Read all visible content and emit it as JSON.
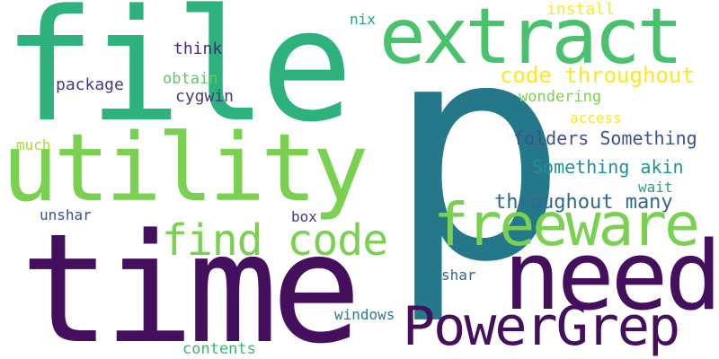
{
  "words": [
    {
      "text": "p",
      "color": "#24788a"
    },
    {
      "text": "file",
      "color": "#2db27d"
    },
    {
      "text": "time",
      "color": "#440f5c"
    },
    {
      "text": "utility",
      "color": "#7ad151"
    },
    {
      "text": "extract",
      "color": "#4ac16d"
    },
    {
      "text": "need",
      "color": "#440f5c"
    },
    {
      "text": "freeware",
      "color": "#7ad151"
    },
    {
      "text": "PowerGrep",
      "color": "#440f5c"
    },
    {
      "text": "find code",
      "color": "#7ad151"
    },
    {
      "text": "code throughout",
      "color": "#fde725"
    },
    {
      "text": "throughout many",
      "color": "#31688e"
    },
    {
      "text": "folders Something",
      "color": "#3b528b"
    },
    {
      "text": "Something akin",
      "color": "#21918c"
    },
    {
      "text": "install",
      "color": "#fde725"
    },
    {
      "text": "nix",
      "color": "#20a486"
    },
    {
      "text": "think",
      "color": "#482878"
    },
    {
      "text": "obtain",
      "color": "#5ec962"
    },
    {
      "text": "package",
      "color": "#443983"
    },
    {
      "text": "cygwin",
      "color": "#443983"
    },
    {
      "text": "wondering",
      "color": "#7ad151"
    },
    {
      "text": "access",
      "color": "#fde725"
    },
    {
      "text": "much",
      "color": "#a5db36"
    },
    {
      "text": "wait",
      "color": "#20a486"
    },
    {
      "text": "unshar",
      "color": "#3b528b"
    },
    {
      "text": "box",
      "color": "#443983"
    },
    {
      "text": "shar",
      "color": "#31688e"
    },
    {
      "text": "windows",
      "color": "#287c8e"
    },
    {
      "text": "contents",
      "color": "#35b779"
    }
  ]
}
